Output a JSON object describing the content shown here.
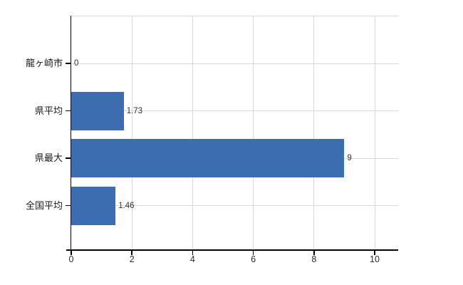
{
  "chart_data": {
    "type": "bar",
    "orientation": "horizontal",
    "title": "",
    "xlabel": "",
    "ylabel": "",
    "categories": [
      "龍ヶ崎市",
      "県平均",
      "県最大",
      "全国平均"
    ],
    "values": [
      0,
      1.73,
      9,
      1.46
    ],
    "value_labels": [
      "0",
      "1.73",
      "9",
      "1.46"
    ],
    "x_ticks": [
      0,
      2,
      4,
      6,
      8,
      10
    ],
    "x_tick_labels": [
      "0",
      "2",
      "4",
      "6",
      "8",
      "10"
    ],
    "xlim": [
      0,
      10.8
    ],
    "grid": true,
    "legend": "none",
    "colors": {
      "bar": "#3c6db0",
      "gridline": "#d9d9d9",
      "axis": "#000000",
      "value_label": "#333333",
      "category_label": "#1a1a1a",
      "tick_label": "#2b2b2b",
      "background": "#ffffff"
    }
  }
}
